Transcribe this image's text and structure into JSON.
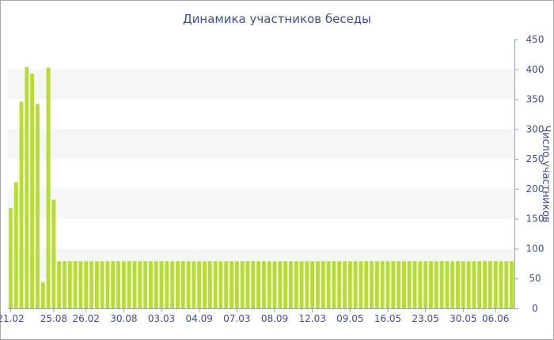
{
  "chart_data": {
    "type": "bar",
    "title": "Динамика участников беседы",
    "ylabel": "Число участников",
    "xlabel": "",
    "ylim": [
      0,
      450
    ],
    "yticks": [
      0,
      50,
      100,
      150,
      200,
      250,
      300,
      350,
      400,
      450
    ],
    "y_axis_side": "right",
    "grid_bands": true,
    "bar_color": "#b7dd2f",
    "band_color": "#f6f6f6",
    "text_color": "#3e4f8c",
    "x_tick_labels": [
      "21.02",
      "25.08",
      "26.02",
      "30.08",
      "03.03",
      "04.09",
      "07.03",
      "08.09",
      "12.03",
      "09.05",
      "16.05",
      "23.05",
      "30.05",
      "06.06"
    ],
    "x_tick_positions": [
      0,
      8,
      14,
      21,
      28,
      35,
      42,
      49,
      56,
      63,
      70,
      77,
      84,
      90
    ],
    "values": [
      168,
      211,
      346,
      404,
      393,
      342,
      44,
      403,
      182,
      79,
      79,
      79,
      79,
      79,
      79,
      79,
      79,
      79,
      79,
      79,
      79,
      79,
      79,
      79,
      79,
      79,
      79,
      79,
      79,
      79,
      79,
      79,
      79,
      79,
      79,
      79,
      79,
      79,
      79,
      79,
      79,
      79,
      79,
      79,
      79,
      79,
      79,
      79,
      79,
      79,
      79,
      79,
      79,
      79,
      79,
      79,
      79,
      79,
      79,
      79,
      79,
      79,
      79,
      79,
      79,
      79,
      79,
      79,
      79,
      79,
      79,
      79,
      79,
      79,
      79,
      79,
      79,
      79,
      79,
      79,
      79,
      79,
      79,
      79,
      79,
      79,
      79,
      79,
      79,
      79,
      79,
      79,
      79,
      79
    ]
  }
}
